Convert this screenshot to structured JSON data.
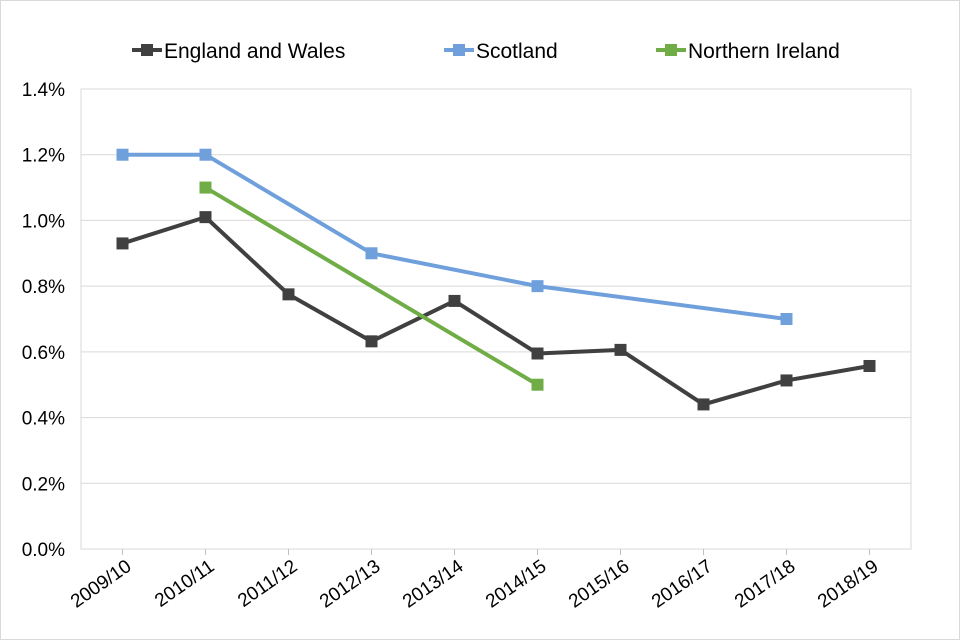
{
  "chart_data": {
    "type": "line",
    "title": "",
    "xlabel": "",
    "ylabel": "",
    "categories": [
      "2009/10",
      "2010/11",
      "2011/12",
      "2012/13",
      "2013/14",
      "2014/15",
      "2015/16",
      "2016/17",
      "2017/18",
      "2018/19"
    ],
    "ylim": [
      0,
      1.4
    ],
    "yticks": [
      0,
      0.2,
      0.4,
      0.6,
      0.8,
      1.0,
      1.2,
      1.4
    ],
    "ytick_labels": [
      "0.0%",
      "0.2%",
      "0.4%",
      "0.6%",
      "0.8%",
      "1.0%",
      "1.2%",
      "1.4%"
    ],
    "legend_position": "top",
    "grid": true,
    "series": [
      {
        "name": "England and Wales",
        "color": "#404040",
        "values": [
          0.93,
          1.01,
          0.775,
          0.632,
          0.755,
          0.595,
          0.606,
          0.44,
          0.513,
          0.557
        ]
      },
      {
        "name": "Scotland",
        "color": "#6fa0dc",
        "values": [
          1.2,
          1.2,
          null,
          0.9,
          null,
          0.8,
          null,
          null,
          0.7,
          null
        ]
      },
      {
        "name": "Northern Ireland",
        "color": "#70ad47",
        "values": [
          null,
          1.1,
          null,
          null,
          null,
          0.5,
          null,
          null,
          null,
          null
        ]
      }
    ]
  }
}
